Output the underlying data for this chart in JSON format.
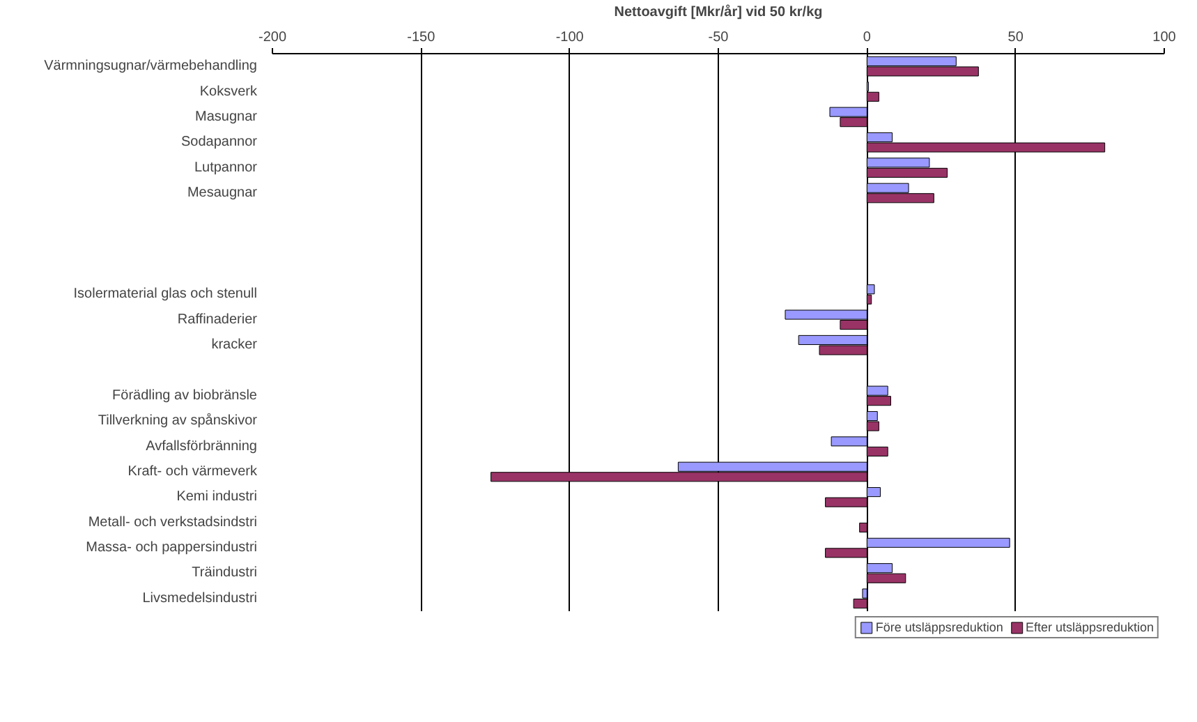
{
  "chart_data": {
    "type": "bar",
    "orientation": "horizontal",
    "xlabel": "Nettoavgift [Mkr/år] vid 50 kr/kg",
    "categories": [
      "Värmningsugnar/värmebehandling",
      "Koksverk",
      "Masugnar",
      "Sodapannor",
      "Lutpannor",
      "Mesaugnar",
      null,
      null,
      null,
      "Isolermaterial glas och stenull",
      "Raffinaderier",
      "kracker",
      null,
      "Förädling av biobränsle",
      "Tillverkning av spånskivor",
      "Avfallsförbränning",
      "Kraft- och värmeverk",
      "Kemi industri",
      "Metall- och verkstadsindstri",
      "Massa- och pappersindustri",
      "Träindustri",
      "Livsmedelsindustri"
    ],
    "series": [
      {
        "name": "Före utsläppsreduktion",
        "color": "#9999ff",
        "values": [
          30,
          0.5,
          -12.5,
          8.5,
          21,
          14,
          null,
          null,
          null,
          2.5,
          -27.5,
          -23,
          null,
          7,
          3.5,
          -12,
          -63.5,
          4.5,
          null,
          48,
          8.5,
          -1.5
        ]
      },
      {
        "name": "Efter utsläppsreduktion",
        "color": "#993366",
        "values": [
          37.5,
          4,
          -9,
          80,
          27,
          22.5,
          null,
          null,
          null,
          1.5,
          -9,
          -16,
          null,
          8,
          4,
          7,
          -126.5,
          -14,
          -2.5,
          -14,
          13,
          -4.5
        ]
      }
    ],
    "xlim": [
      -200,
      100
    ],
    "xticks": [
      -200,
      -150,
      -100,
      -50,
      0,
      50,
      100
    ],
    "grid": "x",
    "legend": "bottom"
  }
}
